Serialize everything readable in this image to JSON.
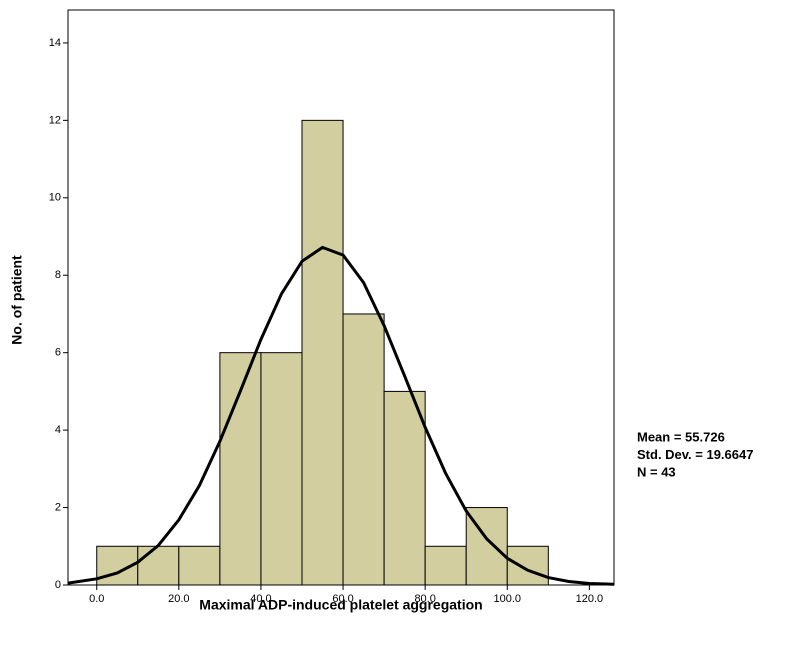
{
  "chart_data": {
    "type": "histogram",
    "x_label": "Maximal ADP-induced platelet aggregation",
    "y_label": "No. of patient",
    "bins": [
      0,
      10,
      20,
      30,
      40,
      50,
      60,
      70,
      80,
      90,
      100,
      110
    ],
    "values": [
      1,
      1,
      1,
      6,
      6,
      12,
      7,
      5,
      1,
      2,
      1
    ],
    "color": "#d3ce9f",
    "xlim": [
      -7,
      126
    ],
    "ylim": [
      0,
      14.85
    ],
    "xticks": [
      {
        "value": 0,
        "label": "0.0"
      },
      {
        "value": 20,
        "label": "20.0"
      },
      {
        "value": 40,
        "label": "40.0"
      },
      {
        "value": 60,
        "label": "60.0"
      },
      {
        "value": 80,
        "label": "80.0"
      },
      {
        "value": 100,
        "label": "100.0"
      },
      {
        "value": 120,
        "label": "120.0"
      }
    ],
    "yticks": [
      0,
      2,
      4,
      6,
      8,
      10,
      12,
      14
    ],
    "curve": {
      "color": "#000000",
      "x": [
        -7,
        0,
        5,
        10,
        15,
        20,
        25,
        30,
        35,
        40,
        45,
        50,
        55,
        60,
        65,
        70,
        75,
        80,
        85,
        90,
        95,
        100,
        105,
        110,
        115,
        120,
        126
      ],
      "y": [
        0.05,
        0.16,
        0.31,
        0.59,
        1.02,
        1.68,
        2.57,
        3.71,
        5.01,
        6.34,
        7.52,
        8.36,
        8.72,
        8.52,
        7.81,
        6.7,
        5.4,
        4.07,
        2.88,
        1.91,
        1.19,
        0.69,
        0.38,
        0.19,
        0.09,
        0.04,
        0.02
      ]
    },
    "annotations": [
      "Mean = 55.726",
      "Std. Dev. = 19.6647",
      "N = 43"
    ]
  }
}
